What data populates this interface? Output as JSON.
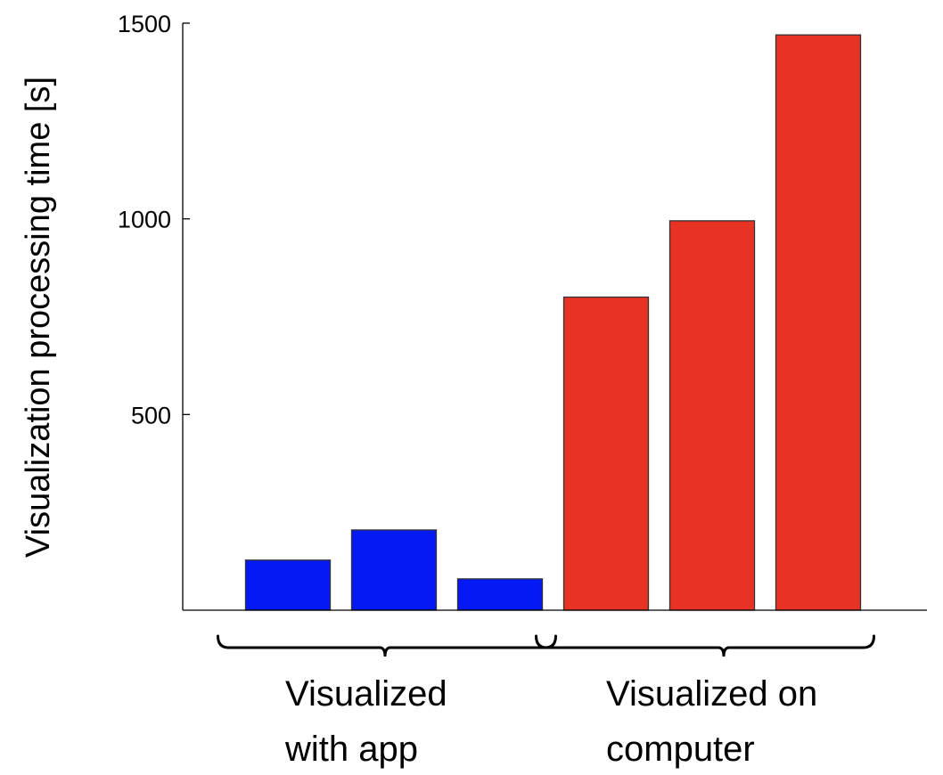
{
  "chart_data": {
    "type": "bar",
    "title": "",
    "xlabel": "",
    "ylabel": "Visualization processing time [s]",
    "ylim": [
      0,
      1500
    ],
    "yticks": [
      500,
      1000,
      1500
    ],
    "grid": false,
    "groups": [
      {
        "label_lines": [
          "Visualized",
          "with app"
        ],
        "color": "#0519F5",
        "values": [
          128,
          205,
          80
        ]
      },
      {
        "label_lines": [
          "Visualized on",
          "computer"
        ],
        "color": "#E83224",
        "values": [
          800,
          995,
          1470
        ]
      }
    ]
  }
}
